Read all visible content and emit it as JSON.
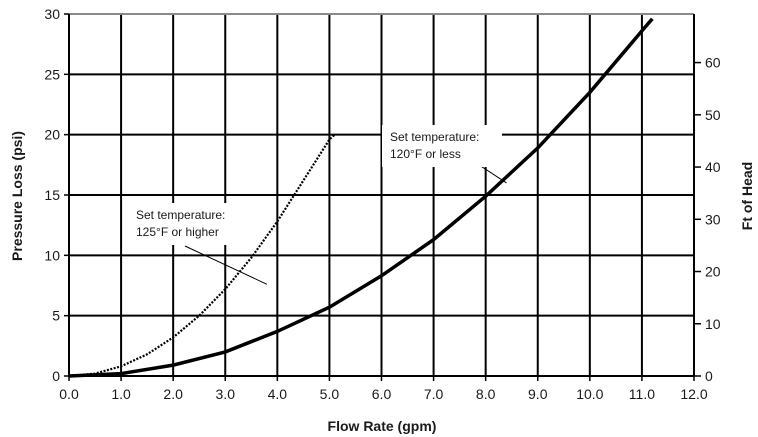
{
  "chart_data": {
    "type": "line",
    "title": "",
    "xlabel": "Flow Rate (gpm)",
    "ylabel": "Pressure Loss (psi)",
    "y2label": "Ft of Head",
    "xlim": [
      0,
      12
    ],
    "ylim": [
      0,
      30
    ],
    "y2lim": [
      0,
      69.3
    ],
    "x_ticks": [
      "0.0",
      "1.0",
      "2.0",
      "3.0",
      "4.0",
      "5.0",
      "6.0",
      "7.0",
      "8.0",
      "9.0",
      "10.0",
      "11.0",
      "12.0"
    ],
    "y_ticks": [
      "0",
      "5",
      "10",
      "15",
      "20",
      "25",
      "30"
    ],
    "y2_ticks": [
      "0",
      "10",
      "20",
      "30",
      "40",
      "50",
      "60"
    ],
    "grid": true,
    "series": [
      {
        "style": "dotted",
        "x": [
          0,
          0.5,
          1.0,
          1.5,
          2.0,
          2.5,
          3.0,
          3.5,
          4.0,
          4.5,
          5.0,
          5.1
        ],
        "y": [
          0,
          0.2,
          0.8,
          1.8,
          3.2,
          5.0,
          7.2,
          9.8,
          12.8,
          16.2,
          19.6,
          20.0
        ]
      },
      {
        "style": "solid",
        "x": [
          0,
          1.0,
          2.0,
          3.0,
          4.0,
          5.0,
          6.0,
          7.0,
          8.0,
          9.0,
          10.0,
          11.0,
          11.2
        ],
        "y": [
          0,
          0.2,
          0.9,
          2.0,
          3.7,
          5.7,
          8.3,
          11.3,
          14.9,
          18.9,
          23.5,
          28.6,
          29.6
        ]
      }
    ],
    "annotations": [
      {
        "lines": [
          "Set temperature:",
          "125°F or higher"
        ],
        "points_to": [
          3.8,
          7.6
        ]
      },
      {
        "lines": [
          "Set temperature:",
          "120°F or less"
        ],
        "points_to": [
          8.4,
          16.0
        ]
      }
    ]
  }
}
